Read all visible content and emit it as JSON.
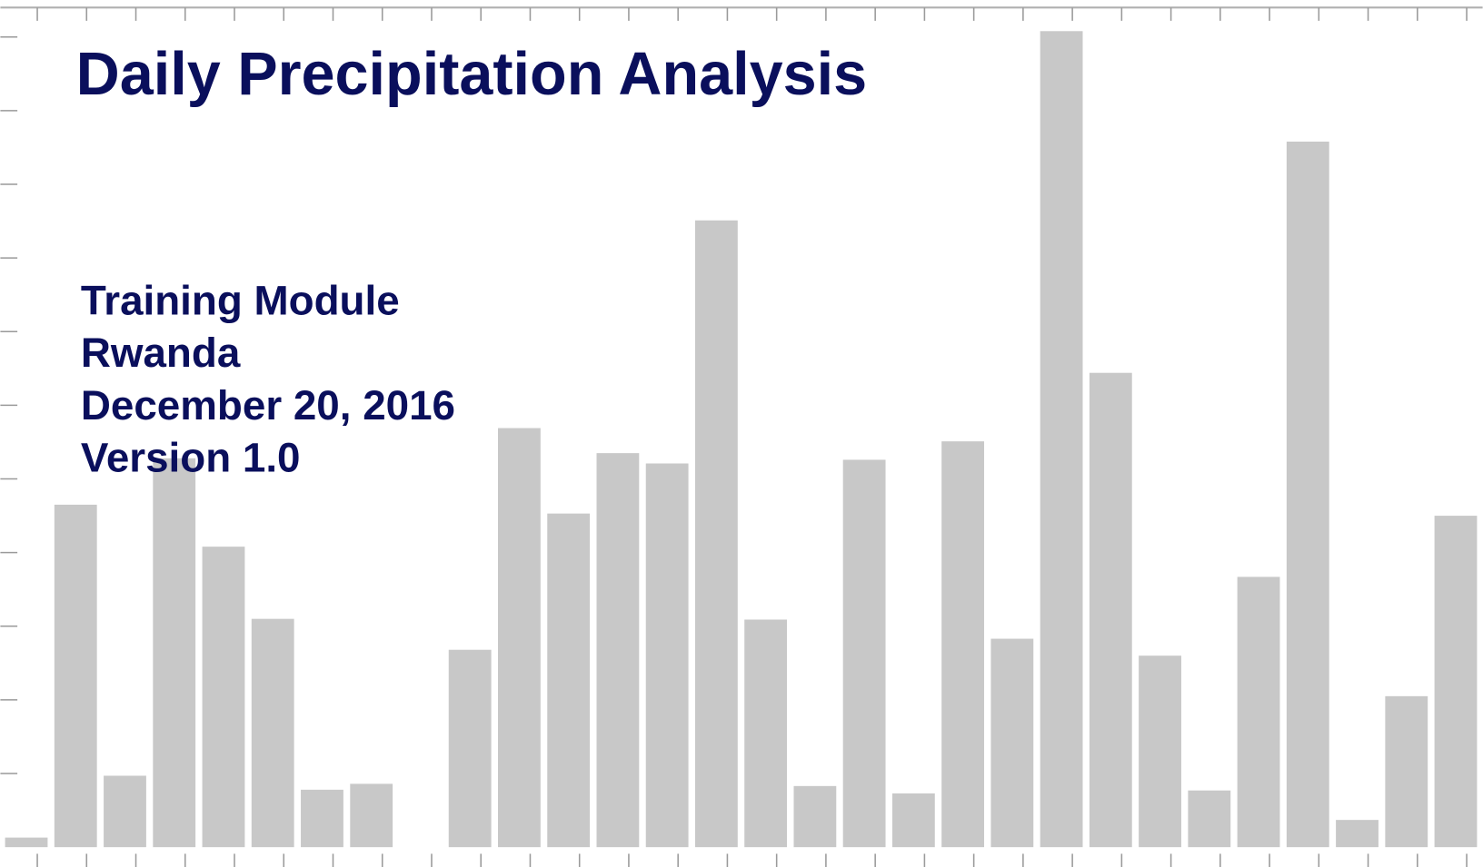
{
  "chart_data": {
    "type": "bar",
    "title": "Daily Precipitation Analysis",
    "annotations": [
      "Training Module",
      "Rwanda",
      "December 20, 2016",
      "Version 1.0"
    ],
    "values": [
      0.13,
      4.65,
      0.97,
      5.28,
      4.08,
      3.1,
      0.78,
      0.86,
      0,
      2.68,
      5.69,
      4.53,
      5.35,
      5.21,
      8.51,
      3.09,
      0.83,
      5.26,
      0.73,
      5.51,
      2.83,
      11.08,
      6.44,
      2.6,
      0.77,
      3.67,
      9.58,
      0.37,
      2.05,
      4.5
    ],
    "color": "#c8c8c8",
    "ylim": [
      0,
      11.4
    ],
    "yticks": [
      1,
      2,
      3,
      4,
      5,
      6,
      7,
      8,
      9,
      10,
      11
    ]
  }
}
